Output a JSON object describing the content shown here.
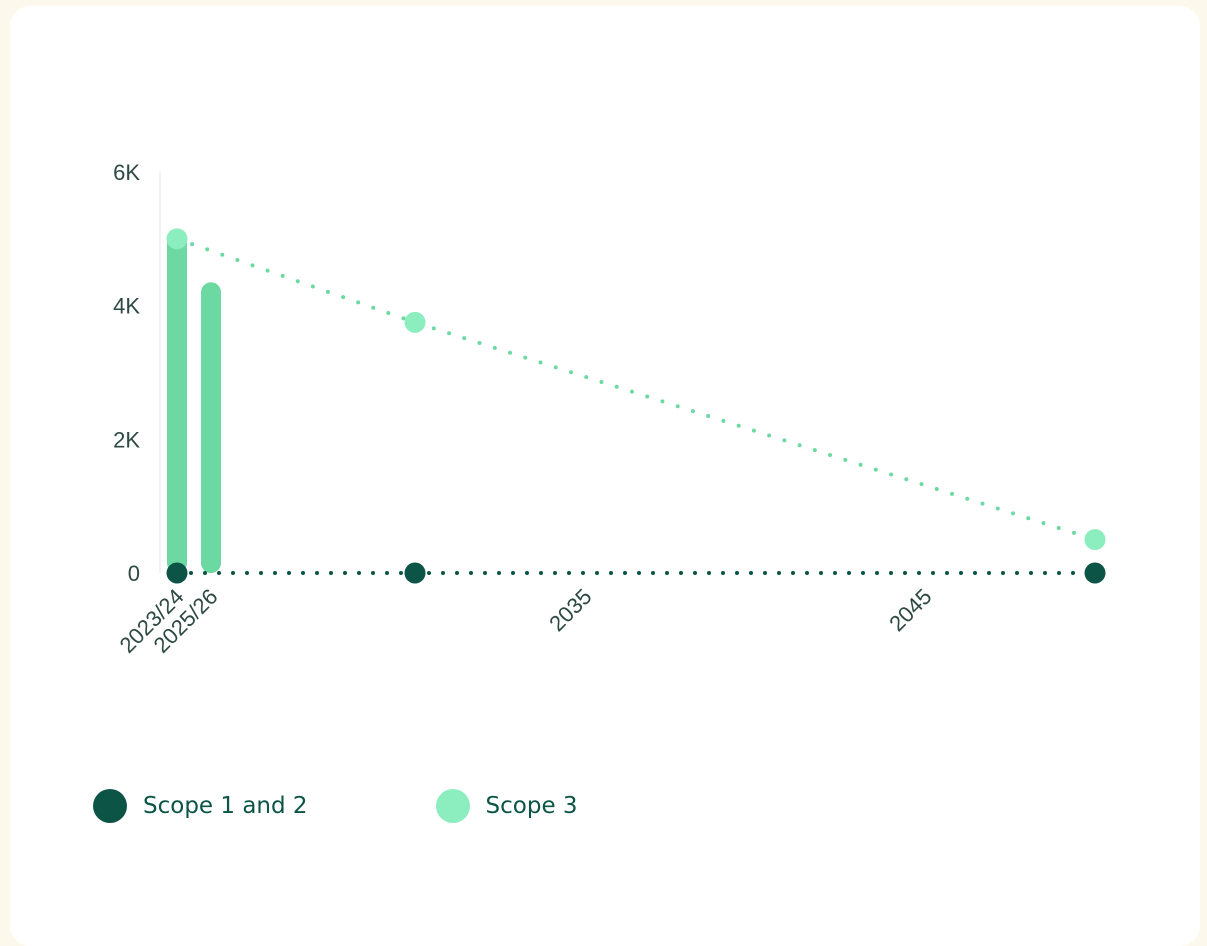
{
  "chart_data": {
    "type": "bar",
    "categories": [
      "2023/24",
      "2025/26"
    ],
    "x_ticks": [
      "2023/24",
      "2025/26",
      "2035",
      "2045"
    ],
    "y_ticks": [
      "0",
      "2K",
      "4K",
      "6K"
    ],
    "ylim": [
      0,
      6000
    ],
    "title": "",
    "xlabel": "",
    "ylabel": "",
    "grid": false,
    "legend_position": "bottom-left",
    "series": [
      {
        "name": "Scope 1 and 2",
        "color": "#0b5446",
        "bar_values": [
          0,
          0
        ],
        "trajectory": [
          {
            "x": "2023/24",
            "y": 0
          },
          {
            "x": "2030",
            "y": 0
          },
          {
            "x": "2050",
            "y": 0
          }
        ]
      },
      {
        "name": "Scope 3",
        "color": "#8cedbf",
        "bar_color": "#6dd9a2",
        "bar_values": [
          5000,
          4200
        ],
        "trajectory": [
          {
            "x": "2023/24",
            "y": 5000
          },
          {
            "x": "2030",
            "y": 3750
          },
          {
            "x": "2050",
            "y": 500
          }
        ]
      }
    ]
  },
  "legend": {
    "items": [
      {
        "label": "Scope 1 and 2",
        "color": "#0b5446"
      },
      {
        "label": "Scope 3",
        "color": "#8cedbf"
      }
    ]
  },
  "colors": {
    "page_background": "#fdf8ec",
    "card_background": "#ffffff",
    "label_text": "#0b5446",
    "tick_text": "#2e4a43"
  }
}
